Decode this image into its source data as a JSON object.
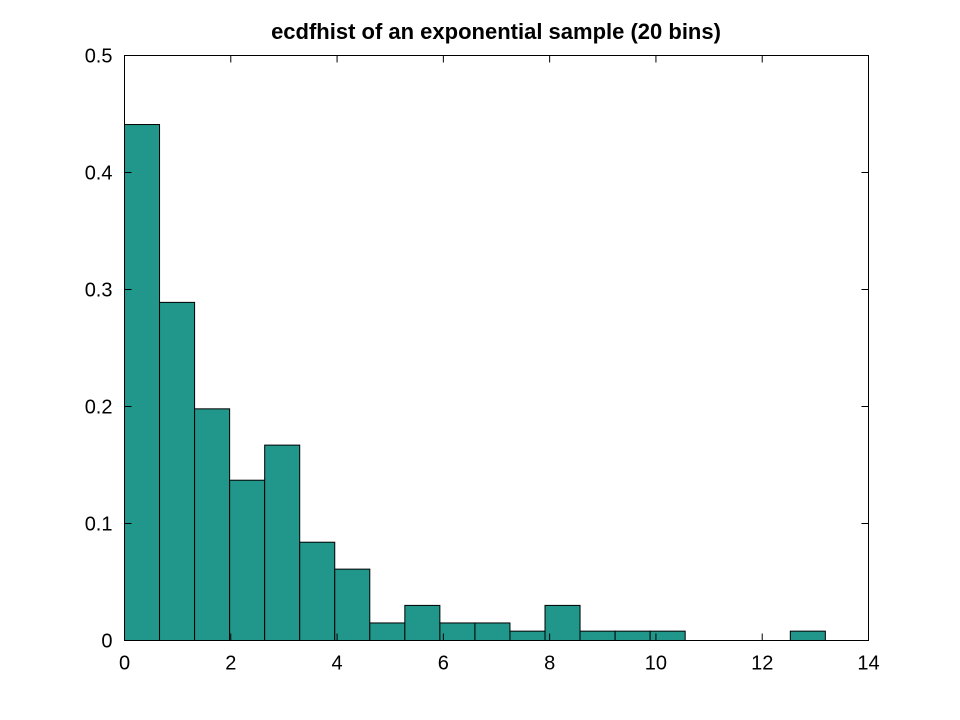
{
  "chart_data": {
    "type": "bar",
    "title": "ecdfhist of an exponential sample (20 bins)",
    "xlabel": "",
    "ylabel": "",
    "xlim": [
      0,
      14
    ],
    "ylim": [
      0,
      0.5
    ],
    "xticks": [
      0,
      2,
      4,
      6,
      8,
      10,
      12,
      14
    ],
    "yticks": [
      0,
      0.1,
      0.2,
      0.3,
      0.4,
      0.5
    ],
    "xtick_labels": [
      "0",
      "2",
      "4",
      "6",
      "8",
      "10",
      "12",
      "14"
    ],
    "ytick_labels": [
      "0",
      "0.1",
      "0.2",
      "0.3",
      "0.4",
      "0.5"
    ],
    "grid": false,
    "bins": {
      "start": 0,
      "width": 0.6594,
      "values": [
        0.441,
        0.289,
        0.198,
        0.137,
        0.167,
        0.084,
        0.061,
        0.015,
        0.03,
        0.015,
        0.015,
        0.008,
        0.03,
        0.008,
        0.008,
        0.008,
        0,
        0,
        0,
        0.008
      ]
    },
    "colors": {
      "bar_fill": "#21968b",
      "bar_edge": "#000000"
    }
  }
}
